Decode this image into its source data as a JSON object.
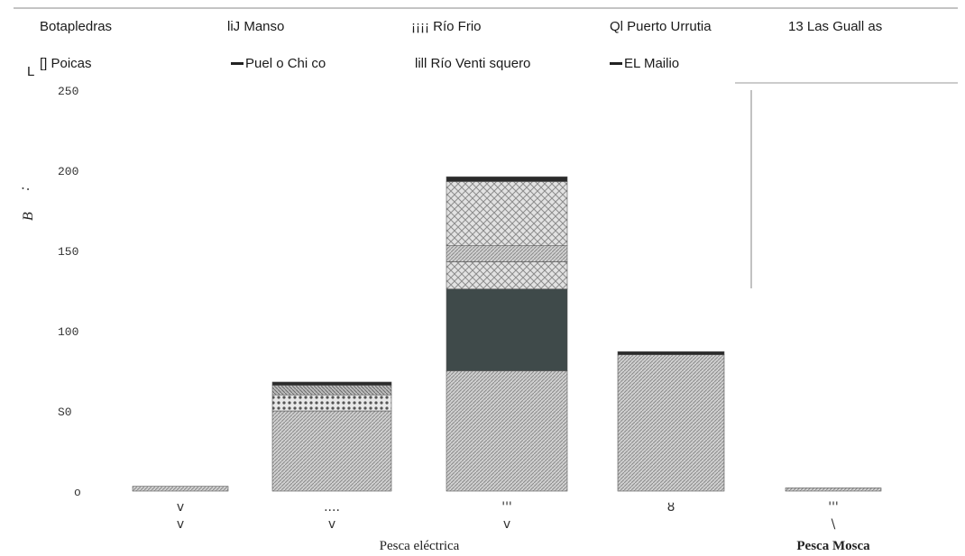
{
  "chart_data": {
    "type": "bar",
    "stacked": true,
    "legend": {
      "placement": "top",
      "entries": [
        {
          "label": "Botapledras",
          "color": "#c4c4c4",
          "pattern": "diagonal"
        },
        {
          "label": "liJ Manso",
          "color": "#9a9a9a",
          "pattern": "hatch"
        },
        {
          "label": "¡¡¡¡ Río Frio",
          "color": "#d6d6d6",
          "pattern": "crosshatch"
        },
        {
          "label": "Ql Puerto Urrutia",
          "color": "#bfbfbf",
          "pattern": "dots"
        },
        {
          "label": "13 Las Guall as",
          "color": "#3f4a4a",
          "pattern": "solid"
        },
        {
          "label": "[] Poicas",
          "color": "#cfcfcf",
          "pattern": "diagonal"
        },
        {
          "label": "Puel o Chi co",
          "color": "#333333",
          "pattern": "line"
        },
        {
          "label": "lill Río Venti squero",
          "color": "#b5b5b5",
          "pattern": "diagonal"
        },
        {
          "label": "EL Mailio",
          "color": "#333333",
          "pattern": "line"
        }
      ]
    },
    "yticks": [
      "250",
      "200",
      "150",
      "100",
      "S0",
      "o"
    ],
    "ylim": [
      0,
      250
    ],
    "ylabel": "B",
    "ylabel_marks": ":",
    "categories": [
      "v",
      "....",
      "'''",
      "ȣ",
      "'''"
    ],
    "category_sublabels": [
      "v",
      "v",
      "v",
      "",
      "\\"
    ],
    "xlabels": [
      {
        "text": "Pesca eléctrica",
        "bold": false,
        "category_span": [
          0,
          3
        ]
      },
      {
        "text": "Pesca Mosca",
        "bold": true,
        "category_span": [
          4,
          4
        ]
      }
    ],
    "series": [
      {
        "name": "Botapledras",
        "color": "#c4c4c4",
        "pattern": "diagonal",
        "values": [
          3,
          50,
          75,
          85,
          2
        ]
      },
      {
        "name": "Ql Puerto Urrutia",
        "color": "#bfbfbf",
        "pattern": "dots",
        "values": [
          0,
          10,
          0,
          0,
          0
        ]
      },
      {
        "name": "liJ Manso",
        "color": "#9a9a9a",
        "pattern": "hatch",
        "values": [
          0,
          6,
          0,
          0,
          0
        ]
      },
      {
        "name": "13 Las Guall as",
        "color": "#3f4a4a",
        "pattern": "solid",
        "values": [
          0,
          0,
          51,
          0,
          0
        ]
      },
      {
        "name": "¡¡¡¡ Río Frio",
        "color": "#d6d6d6",
        "pattern": "crosshatch",
        "values": [
          0,
          0,
          17,
          0,
          0
        ]
      },
      {
        "name": "lill Río Venti squero",
        "color": "#b5b5b5",
        "pattern": "diagonal",
        "values": [
          0,
          0,
          10,
          0,
          0
        ]
      },
      {
        "name": "[] Poicas",
        "color": "#d9d9d9",
        "pattern": "crosshatch",
        "values": [
          0,
          0,
          40,
          0,
          0
        ]
      },
      {
        "name": "EL Mailio",
        "color": "#333333",
        "pattern": "line",
        "values": [
          0,
          2,
          3,
          2,
          0
        ]
      }
    ]
  },
  "annotations": {
    "corner_mark": "L"
  }
}
